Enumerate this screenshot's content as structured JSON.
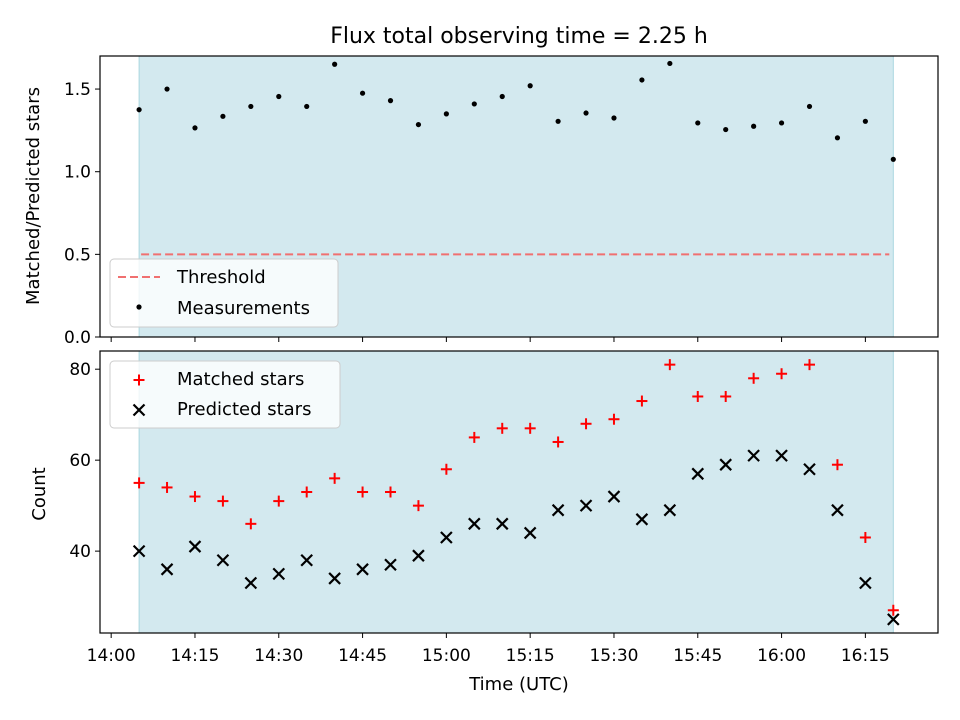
{
  "chart_data": [
    {
      "type": "scatter",
      "title": "Flux total observing time = 2.25 h",
      "xlabel": "",
      "ylabel": "Matched/Predicted stars",
      "ylim": [
        0.0,
        1.7
      ],
      "yticks": [
        "0.0",
        "0.5",
        "1.0",
        "1.5"
      ],
      "ytick_values": [
        0.0,
        0.5,
        1.0,
        1.5
      ],
      "observing_window": [
        "14:05",
        "16:20"
      ],
      "x": [
        "14:05",
        "14:10",
        "14:15",
        "14:20",
        "14:25",
        "14:30",
        "14:35",
        "14:40",
        "14:45",
        "14:50",
        "14:55",
        "15:00",
        "15:05",
        "15:10",
        "15:15",
        "15:20",
        "15:25",
        "15:30",
        "15:35",
        "15:40",
        "15:45",
        "15:50",
        "15:55",
        "16:00",
        "16:05",
        "16:10",
        "16:15",
        "16:20"
      ],
      "series": [
        {
          "name": "Measurements",
          "marker": "dot",
          "color": "#000000",
          "values": [
            1.375,
            1.5,
            1.265,
            1.335,
            1.395,
            1.455,
            1.395,
            1.65,
            1.475,
            1.43,
            1.285,
            1.35,
            1.41,
            1.455,
            1.52,
            1.305,
            1.355,
            1.325,
            1.555,
            1.655,
            1.295,
            1.255,
            1.275,
            1.295,
            1.395,
            1.205,
            1.305,
            1.075
          ]
        },
        {
          "name": "Threshold",
          "marker": "dashed-line",
          "color": "#f07070",
          "values": [
            0.5
          ]
        }
      ],
      "legend": [
        "Threshold",
        "Measurements"
      ],
      "legend_position": "bottom-left"
    },
    {
      "type": "scatter",
      "xlabel": "Time (UTC)",
      "ylabel": "Count",
      "ylim": [
        22,
        84
      ],
      "yticks": [
        "40",
        "60",
        "80"
      ],
      "ytick_values": [
        40,
        60,
        80
      ],
      "xlim": [
        "13:58",
        "16:28"
      ],
      "xticks": [
        "14:00",
        "14:15",
        "14:30",
        "14:45",
        "15:00",
        "15:15",
        "15:30",
        "15:45",
        "16:00",
        "16:15"
      ],
      "observing_window": [
        "14:05",
        "16:20"
      ],
      "x": [
        "14:05",
        "14:10",
        "14:15",
        "14:20",
        "14:25",
        "14:30",
        "14:35",
        "14:40",
        "14:45",
        "14:50",
        "14:55",
        "15:00",
        "15:05",
        "15:10",
        "15:15",
        "15:20",
        "15:25",
        "15:30",
        "15:35",
        "15:40",
        "15:45",
        "15:50",
        "15:55",
        "16:00",
        "16:05",
        "16:10",
        "16:15",
        "16:20"
      ],
      "series": [
        {
          "name": "Matched stars",
          "marker": "plus",
          "color": "#ff0000",
          "values": [
            55,
            54,
            52,
            51,
            46,
            51,
            53,
            56,
            53,
            53,
            50,
            58,
            65,
            67,
            67,
            64,
            68,
            69,
            73,
            81,
            74,
            74,
            78,
            79,
            81,
            59,
            43,
            27
          ]
        },
        {
          "name": "Predicted stars",
          "marker": "x",
          "color": "#000000",
          "values": [
            40,
            36,
            41,
            38,
            33,
            35,
            38,
            34,
            36,
            37,
            39,
            43,
            46,
            46,
            44,
            49,
            50,
            52,
            47,
            49,
            57,
            59,
            61,
            61,
            58,
            49,
            33,
            25
          ]
        }
      ],
      "legend": [
        "Matched stars",
        "Predicted stars"
      ],
      "legend_position": "top-left"
    }
  ],
  "colors": {
    "window_fill": "#d3e9ef",
    "window_edge": "#a9d7e0",
    "threshold": "#f07070",
    "matched": "#ff0000",
    "predicted": "#000000"
  }
}
